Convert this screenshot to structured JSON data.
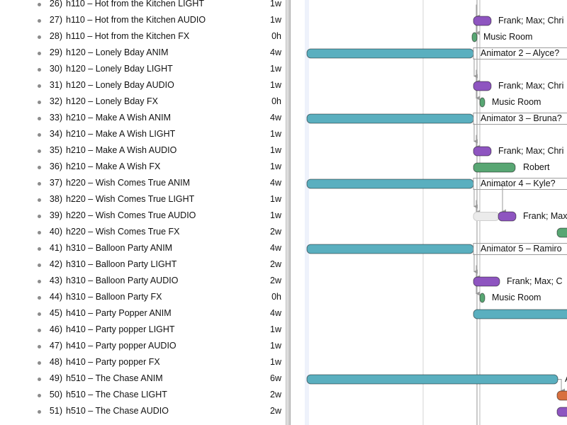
{
  "tasks": [
    {
      "num": "26)",
      "name": "h110 – Hot from the Kitchen LIGHT",
      "duration": "1w"
    },
    {
      "num": "27)",
      "name": "h110 – Hot from the Kitchen AUDIO",
      "duration": "1w"
    },
    {
      "num": "28)",
      "name": "h110 – Hot from the Kitchen FX",
      "duration": "0h"
    },
    {
      "num": "29)",
      "name": "h120 – Lonely Bday ANIM",
      "duration": "4w"
    },
    {
      "num": "30)",
      "name": "h120 – Lonely Bday LIGHT",
      "duration": "1w"
    },
    {
      "num": "31)",
      "name": "h120 – Lonely Bday AUDIO",
      "duration": "1w"
    },
    {
      "num": "32)",
      "name": "h120 – Lonely Bday FX",
      "duration": "0h"
    },
    {
      "num": "33)",
      "name": "h210 – Make A Wish ANIM",
      "duration": "4w"
    },
    {
      "num": "34)",
      "name": "h210 – Make A Wish LIGHT",
      "duration": "1w"
    },
    {
      "num": "35)",
      "name": "h210 – Make A Wish AUDIO",
      "duration": "1w"
    },
    {
      "num": "36)",
      "name": "h210 – Make A Wish FX",
      "duration": "1w"
    },
    {
      "num": "37)",
      "name": "h220 – Wish Comes True ANIM",
      "duration": "4w"
    },
    {
      "num": "38)",
      "name": "h220 – Wish Comes True LIGHT",
      "duration": "1w"
    },
    {
      "num": "39)",
      "name": "h220 – Wish Comes True AUDIO",
      "duration": "1w"
    },
    {
      "num": "40)",
      "name": "h220 – Wish Comes True FX",
      "duration": "2w"
    },
    {
      "num": "41)",
      "name": "h310 – Balloon Party ANIM",
      "duration": "4w"
    },
    {
      "num": "42)",
      "name": "h310 – Balloon Party LIGHT",
      "duration": "2w"
    },
    {
      "num": "43)",
      "name": "h310 – Balloon Party AUDIO",
      "duration": "2w"
    },
    {
      "num": "44)",
      "name": "h310 – Balloon Party FX",
      "duration": "0h"
    },
    {
      "num": "45)",
      "name": "h410 – Party Popper ANIM",
      "duration": "4w"
    },
    {
      "num": "46)",
      "name": "h410 – Party popper LIGHT",
      "duration": "1w"
    },
    {
      "num": "47)",
      "name": "h410 – Party popper AUDIO",
      "duration": "1w"
    },
    {
      "num": "48)",
      "name": "h410 – Party popper FX",
      "duration": "1w"
    },
    {
      "num": "49)",
      "name": "h510 – The Chase ANIM",
      "duration": "6w"
    },
    {
      "num": "50)",
      "name": "h510 – The Chase LIGHT",
      "duration": "2w"
    },
    {
      "num": "51)",
      "name": "h510 – The Chase AUDIO",
      "duration": "2w"
    }
  ],
  "gantt_labels": [
    {
      "row": 1,
      "text": "Frank; Max; Chri"
    },
    {
      "row": 2,
      "text": "Music Room"
    },
    {
      "row": 3,
      "text": "Animator 2 – Alyce?"
    },
    {
      "row": 5,
      "text": "Frank; Max; Chri"
    },
    {
      "row": 6,
      "text": "Music Room"
    },
    {
      "row": 7,
      "text": "Animator 3 – Bruna?"
    },
    {
      "row": 9,
      "text": "Frank; Max; Chri"
    },
    {
      "row": 10,
      "text": "Robert"
    },
    {
      "row": 11,
      "text": "Animator 4 – Kyle?"
    },
    {
      "row": 13,
      "text": "Frank; Max"
    },
    {
      "row": 15,
      "text": "Animator 5 – Ramiro"
    },
    {
      "row": 17,
      "text": "Frank; Max; C"
    },
    {
      "row": 18,
      "text": "Music Room"
    },
    {
      "row": 23,
      "text": "A"
    }
  ],
  "colors": {
    "anim_bar": "#5aafbf",
    "audio_bar": "#8e55c0",
    "fx_bar": "#58a673",
    "light_bar": "#d8703f",
    "grid": "#d6d6d6"
  }
}
